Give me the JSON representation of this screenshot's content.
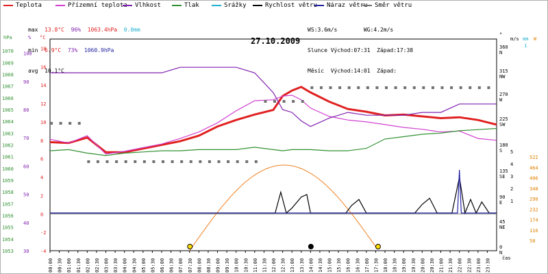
{
  "legend": [
    {
      "label": "Teplota",
      "color": "#e02020"
    },
    {
      "label": "Přízemní teplota",
      "color": "#d040d0"
    },
    {
      "label": "Vlhkost",
      "color": "#8020b0"
    },
    {
      "label": "Tlak",
      "color": "#309030"
    },
    {
      "label": "Srážky",
      "color": "#20b0d0"
    },
    {
      "label": "Rychlost větru",
      "color": "#000000"
    },
    {
      "label": "Náraz větru",
      "color": "#2020a0"
    },
    {
      "label": "Směr větru",
      "color": "#707070"
    }
  ],
  "stats": {
    "max": {
      "label": "max",
      "temp": "13.8°C",
      "hum": "96%",
      "press": "1063.4hPa",
      "rain": "0.0mm"
    },
    "min": {
      "label": "min",
      "temp": "6.9°C",
      "hum": "73%",
      "press": "1060.9hPa"
    },
    "avg": {
      "label": "avg",
      "temp": "10.1°C"
    },
    "ws": "WS:3.6m/s",
    "wg": "WG:4.2m/s",
    "sun": "Slunce Východ:07:31  Západ:17:38",
    "moon": "Měsíc  Východ:14:01  Západ:"
  },
  "chart_data": {
    "type": "line",
    "title": "27.10.2009",
    "xlabel": "čas",
    "x_ticks": [
      "00:00",
      "00:30",
      "01:00",
      "01:30",
      "02:00",
      "02:30",
      "03:00",
      "03:30",
      "04:00",
      "04:30",
      "05:00",
      "05:30",
      "06:00",
      "06:30",
      "07:00",
      "07:30",
      "08:00",
      "08:30",
      "09:00",
      "09:30",
      "10:00",
      "10:30",
      "11:00",
      "11:30",
      "12:00",
      "12:30",
      "13:00",
      "13:30",
      "14:00",
      "14:30",
      "15:00",
      "15:30",
      "16:00",
      "16:30",
      "17:00",
      "17:30",
      "18:00",
      "18:30",
      "19:00",
      "19:30",
      "20:00",
      "20:30",
      "21:00",
      "21:30",
      "22:00",
      "22:30",
      "23:00",
      "23:30"
    ],
    "axes": {
      "hpa": {
        "label": "hPa",
        "range": [
          1053,
          1071
        ],
        "ticks": [
          "1070",
          "1069",
          "1068",
          "1067",
          "1066",
          "1065",
          "1064",
          "1063",
          "1062",
          "1061",
          "1060",
          "1059",
          "1058",
          "1057",
          "1056",
          "1055",
          "1054",
          "1053"
        ]
      },
      "pct": {
        "label": "%",
        "range": [
          30,
          105
        ],
        "ticks": [
          "100",
          "90",
          "80",
          "70",
          "60",
          "50",
          "40",
          "30"
        ]
      },
      "temp": {
        "label": "°C",
        "range": [
          -4,
          19
        ],
        "ticks": [
          "18",
          "16",
          "14",
          "12",
          "10",
          "8",
          "6",
          "4",
          "2",
          "0",
          "-2",
          "-4"
        ]
      },
      "dir": {
        "label": "°",
        "ticks": [
          "360 N",
          "315 NW",
          "270 W",
          "225 SW",
          "180 S",
          "135 SE",
          "90 E",
          "45 NE",
          "0 N"
        ]
      },
      "wind": {
        "label": "m/s",
        "ticks": [
          "5",
          "4",
          "3",
          "2",
          "1"
        ]
      },
      "rain": {
        "label": "mm",
        "ticks": [
          "1"
        ]
      },
      "solar": {
        "label": "W",
        "ticks": [
          "522",
          "464",
          "406",
          "348",
          "290",
          "232",
          "174",
          "116",
          "58"
        ]
      }
    },
    "series": [
      {
        "name": "Teplota",
        "unit": "°C",
        "color": "#e02020",
        "x": [
          0,
          1,
          2,
          3,
          4,
          5,
          6,
          7,
          8,
          9,
          10,
          11,
          12,
          12.5,
          13,
          13.5,
          14,
          15,
          16,
          17,
          18,
          19,
          20,
          21,
          22,
          23,
          24
        ],
        "values": [
          7.8,
          7.7,
          8.3,
          6.7,
          6.7,
          7.1,
          7.5,
          7.9,
          8.5,
          9.5,
          10.2,
          10.8,
          11.3,
          12.8,
          13.4,
          13.8,
          13.2,
          12.2,
          11.4,
          11.1,
          10.7,
          10.8,
          10.6,
          10.4,
          10.5,
          10.2,
          9.7
        ]
      },
      {
        "name": "Přízemní teplota",
        "unit": "°C",
        "color": "#d040d0",
        "x": [
          0,
          1,
          2,
          3,
          4,
          5,
          6,
          7,
          8,
          9,
          10,
          11,
          12,
          12.5,
          13,
          13.5,
          14,
          15,
          16,
          17,
          18,
          19,
          20,
          21,
          22,
          23,
          24
        ],
        "values": [
          8.1,
          7.7,
          8.5,
          6.5,
          6.8,
          7.2,
          7.6,
          8.2,
          8.9,
          9.9,
          11.2,
          12.3,
          12.4,
          12.8,
          12.9,
          12.4,
          11.5,
          10.6,
          10.2,
          10.0,
          9.7,
          9.4,
          9.2,
          8.9,
          9.0,
          8.2,
          8.0
        ]
      },
      {
        "name": "Vlhkost",
        "unit": "%",
        "color": "#8020b0",
        "x": [
          0,
          1,
          2,
          3,
          4,
          5,
          6,
          7,
          8,
          9,
          10,
          11,
          12,
          12.5,
          13,
          13.5,
          14,
          15,
          16,
          17,
          18,
          19,
          20,
          21,
          22,
          23,
          24
        ],
        "values": [
          93,
          93,
          93,
          93,
          93,
          93,
          93,
          95,
          95,
          95,
          95,
          93,
          86,
          80,
          79,
          76,
          74,
          77,
          79,
          78,
          78,
          78,
          79,
          79,
          82,
          82,
          82
        ]
      },
      {
        "name": "Tlak",
        "unit": "hPa",
        "color": "#309030",
        "x": [
          0,
          1,
          2,
          3,
          4,
          5,
          6,
          7,
          8,
          9,
          10,
          11,
          12,
          12.5,
          13,
          13.5,
          14,
          15,
          16,
          17,
          18,
          19,
          20,
          21,
          22,
          23,
          24
        ],
        "values": [
          1061.5,
          1061.6,
          1061.3,
          1061.1,
          1061.3,
          1061.4,
          1061.5,
          1061.5,
          1061.6,
          1061.6,
          1061.6,
          1061.8,
          1061.6,
          1061.5,
          1061.6,
          1061.6,
          1061.6,
          1061.5,
          1061.5,
          1061.7,
          1062.5,
          1062.7,
          1062.9,
          1063.0,
          1063.2,
          1063.3,
          1063.4
        ]
      },
      {
        "name": "Rychlost větru",
        "unit": "m/s",
        "color": "#000000",
        "x": [
          0,
          12.1,
          12.4,
          12.7,
          13.0,
          13.5,
          13.8,
          14.0,
          14.3,
          15.9,
          16.2,
          16.6,
          17.0,
          19.6,
          20.0,
          20.4,
          20.8,
          21.6,
          22.0,
          22.3,
          22.6,
          22.9,
          23.2,
          23.6,
          24
        ],
        "values": [
          0,
          0,
          1.7,
          0,
          0.4,
          1.3,
          1.5,
          0,
          0,
          0,
          0.6,
          1.1,
          0,
          0,
          0.7,
          1.2,
          0,
          0,
          2.9,
          0,
          1.1,
          0,
          0.9,
          0,
          0
        ]
      },
      {
        "name": "Náraz větru",
        "unit": "m/s",
        "color": "#2020a0",
        "x": [
          0,
          21.9,
          22.0,
          22.1,
          24
        ],
        "values": [
          0,
          0,
          3.5,
          0,
          0
        ]
      }
    ]
  }
}
